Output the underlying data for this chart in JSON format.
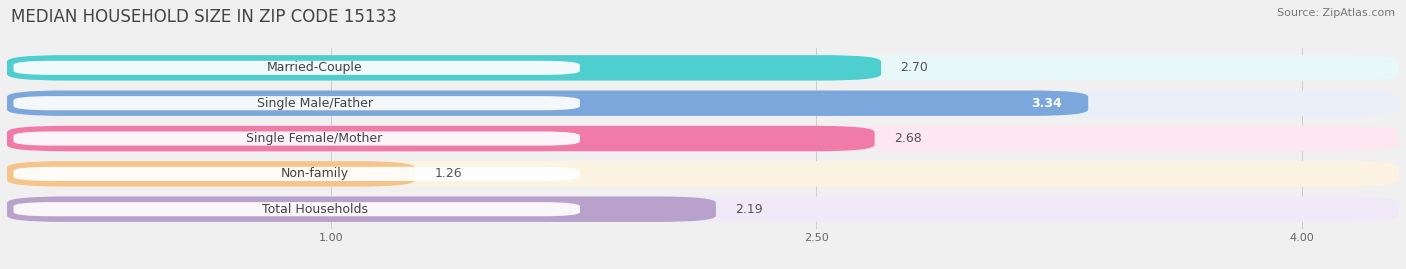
{
  "title": "MEDIAN HOUSEHOLD SIZE IN ZIP CODE 15133",
  "source": "Source: ZipAtlas.com",
  "categories": [
    "Married-Couple",
    "Single Male/Father",
    "Single Female/Mother",
    "Non-family",
    "Total Households"
  ],
  "values": [
    2.7,
    3.34,
    2.68,
    1.26,
    2.19
  ],
  "bar_colors": [
    "#4ECECE",
    "#7BA7DC",
    "#F07BA8",
    "#F5C48A",
    "#B8A2CC"
  ],
  "bar_bg_colors": [
    "#E8F8F8",
    "#EAF0FA",
    "#FDE8F2",
    "#FDF3E3",
    "#F0EAF8"
  ],
  "label_bg_color": "#FFFFFF",
  "xlim_min": 0.0,
  "xlim_max": 4.3,
  "xstart": 0.0,
  "xticks": [
    1.0,
    2.5,
    4.0
  ],
  "value_label_inside": [
    false,
    true,
    false,
    false,
    false
  ],
  "title_fontsize": 12,
  "source_fontsize": 8,
  "bar_label_fontsize": 9,
  "value_fontsize": 9,
  "background_color": "#f0f0f0"
}
